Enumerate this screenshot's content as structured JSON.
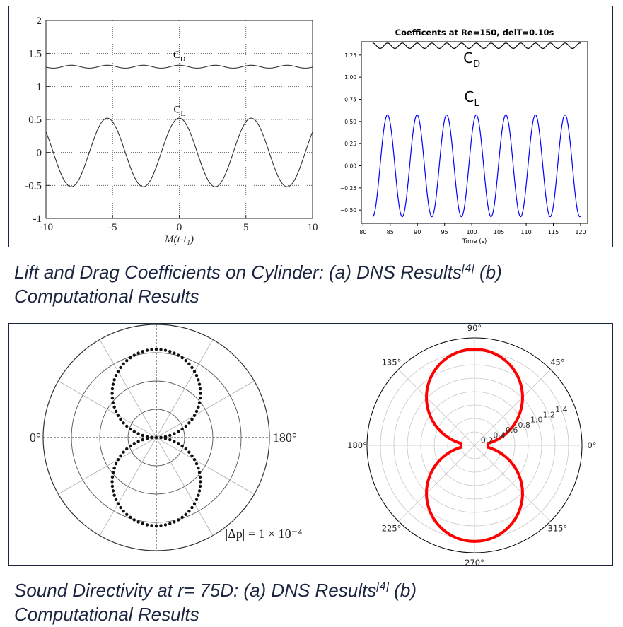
{
  "captions": {
    "top": {
      "pre": "Lift and Drag Coefficients on Cylinder: (a) DNS Results",
      "ref": "[4]",
      "post": " (b)",
      "line2": "Computational Results"
    },
    "bottom": {
      "pre": "Sound Directivity at r= 75D: (a) DNS Results",
      "ref": "[4]",
      "post": " (b)",
      "line2": "Computational Results"
    }
  },
  "chart_data": [
    {
      "id": "dns-force-coefficients",
      "type": "line",
      "title": "",
      "xlabel": "M(t-t₁)",
      "ylabel": "",
      "xlim": [
        -10,
        10
      ],
      "ylim": [
        -1,
        2
      ],
      "xticks": [
        "-10",
        "-5",
        "0",
        "5",
        "10"
      ],
      "yticks": [
        "-1",
        "-0.5",
        "0",
        "0.5",
        "1",
        "1.5",
        "2"
      ],
      "grid": true,
      "annotations": [
        {
          "text": "C",
          "sub": "D",
          "x": 0,
          "y": 1.43
        },
        {
          "text": "C",
          "sub": "L",
          "x": 0,
          "y": 0.6
        }
      ],
      "series": [
        {
          "curve": "C_D",
          "form": "sine",
          "mean": 1.3,
          "amplitude": 0.022,
          "period": 2.7,
          "peak_at": 0,
          "x_range": [
            -10,
            10
          ],
          "color": "#333333"
        },
        {
          "curve": "C_L",
          "form": "sine",
          "mean": 0.0,
          "amplitude": 0.52,
          "period": 5.4,
          "peak_at": 0,
          "x_range": [
            -10,
            10
          ],
          "color": "#333333"
        }
      ]
    },
    {
      "id": "computed-force-coefficients",
      "type": "line",
      "title": "Coefficents at Re=150, delT=0.10s",
      "xlabel": "Time (s)",
      "ylabel": "",
      "xlim": [
        79.7,
        121.3
      ],
      "ylim": [
        -0.65,
        1.4
      ],
      "xticks": [
        80,
        85,
        90,
        95,
        100,
        105,
        110,
        115,
        120
      ],
      "yticks": [
        -0.5,
        -0.25,
        0.0,
        0.25,
        0.5,
        0.75,
        1.0,
        1.25
      ],
      "ytick_labels": [
        "−0.50",
        "−0.25",
        "0.00",
        "0.25",
        "0.50",
        "0.75",
        "1.00",
        "1.25"
      ],
      "grid": false,
      "annotations": [
        {
          "text": "C",
          "sub": "D",
          "x": 100,
          "y": 1.16
        },
        {
          "text": "C",
          "sub": "L",
          "x": 100,
          "y": 0.72
        }
      ],
      "series": [
        {
          "curve": "C_D",
          "form": "sine",
          "mean": 1.355,
          "amplitude": 0.03,
          "period": 2.72,
          "peak_at": 81.8,
          "x_range": [
            81.8,
            120
          ],
          "color": "#000000"
        },
        {
          "curve": "C_L",
          "form": "sine",
          "mean": 0.0,
          "amplitude": 0.575,
          "period": 5.44,
          "peak_at": 84.5,
          "x_range": [
            81.8,
            120
          ],
          "color": "#0000ff"
        }
      ]
    },
    {
      "id": "dns-directivity",
      "type": "scatter",
      "coordinate_system": "polar",
      "title": "",
      "angle_labels": [
        "0°",
        "180°"
      ],
      "annotation": "|Δp| = 1 × 10⁻⁴",
      "rings": [
        0.25,
        0.5,
        0.75,
        1.0
      ],
      "spokes_deg": [
        0,
        30,
        60,
        90,
        120,
        150
      ],
      "series": [
        {
          "form": "abs(sin(theta))",
          "r_max": 0.78,
          "n_points": 120,
          "color": "#111111"
        }
      ]
    },
    {
      "id": "computed-directivity",
      "type": "line",
      "coordinate_system": "polar",
      "title": "",
      "angle_labels": [
        "0°",
        "45°",
        "90°",
        "135°",
        "180°",
        "225°",
        "270°",
        "315°"
      ],
      "radial_max": 1.6,
      "radial_ticks": [
        0.2,
        0.4,
        0.6,
        0.8,
        1.0,
        1.2,
        1.4
      ],
      "radial_tick_labels": [
        "0.2",
        "0.4",
        "0.6",
        "0.8",
        "1.0",
        "1.2",
        "1.4"
      ],
      "series": [
        {
          "form": "abs(sin(theta))",
          "r_max": 1.43,
          "r_min": 0.2,
          "color": "#ff0000"
        }
      ]
    }
  ]
}
